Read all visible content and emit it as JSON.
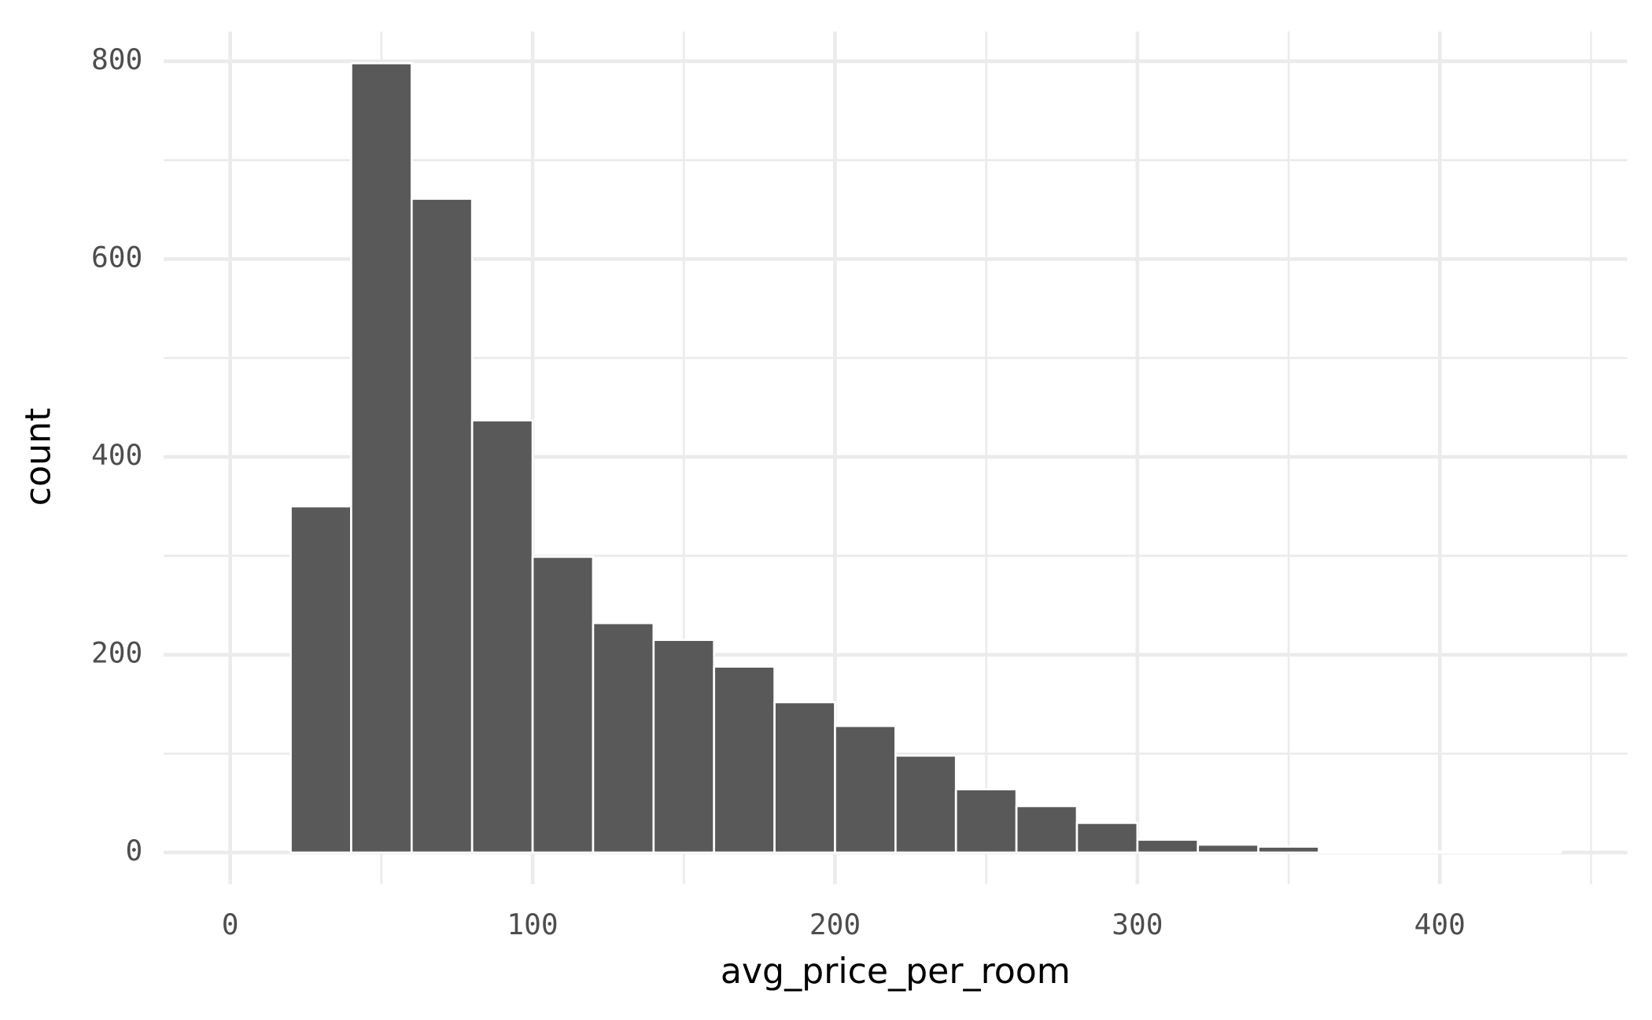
{
  "chart_data": {
    "type": "histogram",
    "xlabel": "avg_price_per_room",
    "ylabel": "count",
    "bins": [
      0,
      20,
      40,
      60,
      80,
      100,
      120,
      140,
      160,
      180,
      200,
      220,
      240,
      260,
      280,
      300,
      320,
      340,
      360,
      380,
      400,
      420,
      440
    ],
    "values": [
      0,
      350,
      798,
      661,
      437,
      299,
      232,
      215,
      188,
      152,
      128,
      98,
      64,
      47,
      30,
      13,
      8,
      6,
      1,
      1,
      1,
      1
    ],
    "color": "#595959",
    "xlim": [
      -22,
      462
    ],
    "ylim": [
      -32,
      830
    ],
    "xticks": [
      0,
      100,
      200,
      300,
      400
    ],
    "yticks": [
      0,
      200,
      400,
      600,
      800
    ],
    "minor_xticks": [
      50,
      150,
      250,
      350,
      450
    ],
    "minor_yticks": [
      100,
      300,
      500,
      700
    ],
    "grid": true
  }
}
